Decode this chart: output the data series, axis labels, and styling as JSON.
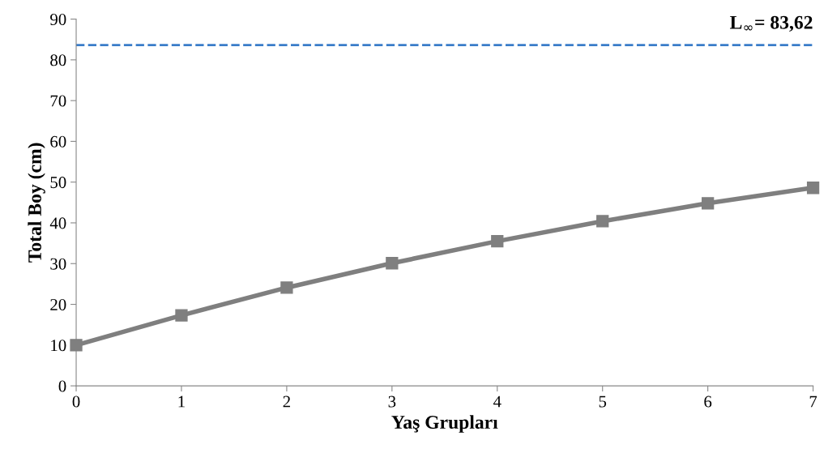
{
  "chart_data": {
    "type": "line",
    "xlabel": "Yaş Grupları",
    "ylabel": "Total Boy (cm)",
    "x": [
      0,
      1,
      2,
      3,
      4,
      5,
      6,
      7
    ],
    "series": [
      {
        "color": "#7f7f7f",
        "values": [
          10,
          17.3,
          24.1,
          30.1,
          35.5,
          40.4,
          44.8,
          48.6
        ]
      }
    ],
    "xlim": [
      0,
      7
    ],
    "xticks": [
      0,
      1,
      2,
      3,
      4,
      5,
      6,
      7
    ],
    "ylim": [
      0,
      90
    ],
    "yticks": [
      0,
      10,
      20,
      30,
      40,
      50,
      60,
      70,
      80,
      90
    ],
    "ref_lines": [
      {
        "axis": "y",
        "value": 83.62,
        "label": "L$_{∞}$= 83,62",
        "color": "#3a7dc9",
        "line_style": "dashed"
      }
    ],
    "marker": "square",
    "line_style": "solid"
  }
}
